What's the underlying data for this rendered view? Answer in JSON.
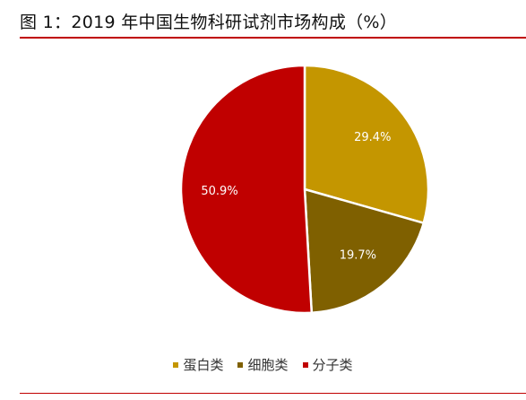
{
  "figure": {
    "title": "图 1：2019 年中国生物科研试剂市场构成（%）"
  },
  "colors": {
    "rule": "#c00000",
    "slice_border": "#ffffff",
    "label_text": "#ffffff"
  },
  "chart_data": {
    "type": "pie",
    "unit": "%",
    "start_angle_deg": 0,
    "direction": "clockwise",
    "legend_position": "bottom",
    "slices": [
      {
        "label": "蛋白类",
        "value": 29.4,
        "value_label": "29.4%",
        "color": "#c49600"
      },
      {
        "label": "细胞类",
        "value": 19.7,
        "value_label": "19.7%",
        "color": "#7f6000"
      },
      {
        "label": "分子类",
        "value": 50.9,
        "value_label": "50.9%",
        "color": "#c00000"
      }
    ]
  }
}
